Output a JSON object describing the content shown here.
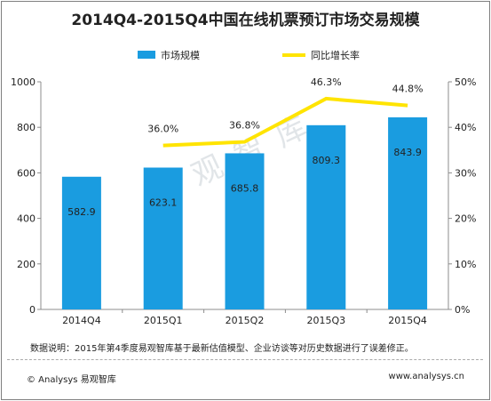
{
  "title": "2014Q4-2015Q4中国在线机票预订市场交易规模",
  "legend": {
    "bar_label": "市场规模",
    "line_label": "同比增长率"
  },
  "colors": {
    "bar": "#1a9ce0",
    "line": "#ffe400",
    "axis": "#8c8c8c",
    "text": "#222222"
  },
  "chart_data": {
    "type": "bar",
    "categories": [
      "2014Q4",
      "2015Q1",
      "2015Q2",
      "2015Q3",
      "2015Q4"
    ],
    "series": [
      {
        "name": "市场规模",
        "type": "bar",
        "axis": "left",
        "values": [
          582.9,
          623.1,
          685.8,
          809.3,
          843.9
        ],
        "labels": [
          "582.9",
          "623.1",
          "685.8",
          "809.3",
          "843.9"
        ]
      },
      {
        "name": "同比增长率",
        "type": "line",
        "axis": "right",
        "values": [
          null,
          36.0,
          36.8,
          46.3,
          44.8
        ],
        "labels": [
          "",
          "36.0%",
          "36.8%",
          "46.3%",
          "44.8%"
        ]
      }
    ],
    "y_left": {
      "min": 0,
      "max": 1000,
      "ticks": [
        "0",
        "200",
        "400",
        "600",
        "800",
        "1000"
      ]
    },
    "y_right": {
      "min": 0,
      "max": 50,
      "ticks": [
        "0%",
        "10%",
        "20%",
        "30%",
        "40%",
        "50%"
      ]
    },
    "legend_position": "top-center",
    "grid": false
  },
  "watermark": "易观智库",
  "note": "数据说明：2015年第4季度易观智库基于最新估值模型、企业访谈等对历史数据进行了误差修正。",
  "footer": {
    "left": "© Analysys 易观智库",
    "right": "www.analysys.cn"
  }
}
